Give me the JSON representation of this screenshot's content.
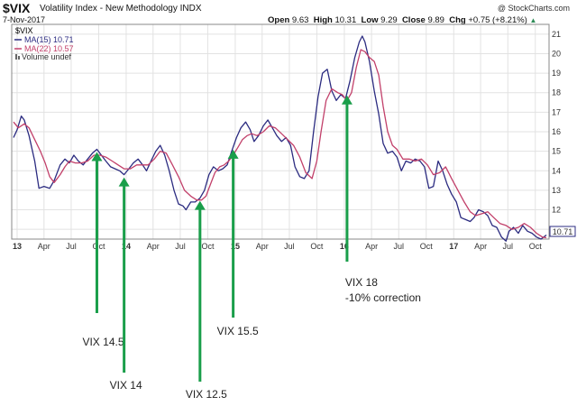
{
  "header": {
    "symbol": "$VIX",
    "subtitle": "Volatility Index - New Methodology",
    "exchange": "INDX",
    "date": "7-Nov-2017",
    "watermark": "@ StockCharts.com",
    "open_label": "Open",
    "open": "9.63",
    "high_label": "High",
    "high": "10.31",
    "low_label": "Low",
    "low": "9.29",
    "close_label": "Close",
    "close": "9.89",
    "chg_label": "Chg",
    "chg": "+0.75 (+8.21%)",
    "chg_arrow": "▲"
  },
  "legend": {
    "symbol": "$VIX",
    "ma15": "MA(15) 10.71",
    "ma22": "MA(22) 10.57",
    "volume": "Volume undef"
  },
  "colors": {
    "ma15": "#2b2b80",
    "ma22": "#c2406a",
    "annotation": "#1a9e4a",
    "grid": "#e2e2e2"
  },
  "chart_data": {
    "type": "line",
    "x_tick_labels": [
      "13",
      "Apr",
      "Jul",
      "Oct",
      "14",
      "Apr",
      "Jul",
      "Oct",
      "15",
      "Apr",
      "Jul",
      "Oct",
      "16",
      "Apr",
      "Jul",
      "Oct",
      "17",
      "Apr",
      "Jul",
      "Oct"
    ],
    "ylim": [
      10.5,
      21.5
    ],
    "y_ticks": [
      11,
      12,
      13,
      14,
      15,
      16,
      17,
      18,
      19,
      20,
      21
    ],
    "last_value_label": "10.71",
    "series": [
      {
        "name": "MA(15) 10.71",
        "points": [
          [
            "2012-12-20",
            15.7
          ],
          [
            "2013-01-01",
            16.1
          ],
          [
            "2013-01-15",
            16.8
          ],
          [
            "2013-01-25",
            16.6
          ],
          [
            "2013-02-10",
            15.8
          ],
          [
            "2013-03-01",
            14.5
          ],
          [
            "2013-03-15",
            13.1
          ],
          [
            "2013-04-01",
            13.2
          ],
          [
            "2013-04-20",
            13.1
          ],
          [
            "2013-05-05",
            13.5
          ],
          [
            "2013-05-25",
            14.3
          ],
          [
            "2013-06-10",
            14.6
          ],
          [
            "2013-06-25",
            14.4
          ],
          [
            "2013-07-10",
            14.8
          ],
          [
            "2013-07-25",
            14.5
          ],
          [
            "2013-08-10",
            14.3
          ],
          [
            "2013-08-25",
            14.6
          ],
          [
            "2013-09-10",
            14.9
          ],
          [
            "2013-09-25",
            15.1
          ],
          [
            "2013-10-10",
            14.8
          ],
          [
            "2013-10-25",
            14.5
          ],
          [
            "2013-11-10",
            14.2
          ],
          [
            "2013-11-25",
            14.1
          ],
          [
            "2013-12-10",
            14.0
          ],
          [
            "2013-12-25",
            13.8
          ],
          [
            "2014-01-10",
            14.1
          ],
          [
            "2014-01-25",
            14.4
          ],
          [
            "2014-02-10",
            14.6
          ],
          [
            "2014-02-25",
            14.3
          ],
          [
            "2014-03-10",
            14.0
          ],
          [
            "2014-03-25",
            14.5
          ],
          [
            "2014-04-10",
            15.0
          ],
          [
            "2014-04-25",
            15.3
          ],
          [
            "2014-05-10",
            14.8
          ],
          [
            "2014-05-25",
            14.0
          ],
          [
            "2014-06-10",
            13.0
          ],
          [
            "2014-06-25",
            12.3
          ],
          [
            "2014-07-10",
            12.2
          ],
          [
            "2014-07-20",
            12.0
          ],
          [
            "2014-08-05",
            12.4
          ],
          [
            "2014-08-20",
            12.4
          ],
          [
            "2014-09-05",
            12.6
          ],
          [
            "2014-09-20",
            13.0
          ],
          [
            "2014-10-05",
            13.8
          ],
          [
            "2014-10-20",
            14.2
          ],
          [
            "2014-11-05",
            14.0
          ],
          [
            "2014-11-20",
            14.1
          ],
          [
            "2014-12-05",
            14.3
          ],
          [
            "2014-12-20",
            15.0
          ],
          [
            "2015-01-05",
            15.7
          ],
          [
            "2015-01-20",
            16.2
          ],
          [
            "2015-02-05",
            16.5
          ],
          [
            "2015-02-20",
            16.1
          ],
          [
            "2015-03-05",
            15.5
          ],
          [
            "2015-03-20",
            15.8
          ],
          [
            "2015-04-05",
            16.3
          ],
          [
            "2015-04-20",
            16.6
          ],
          [
            "2015-05-05",
            16.2
          ],
          [
            "2015-05-20",
            15.8
          ],
          [
            "2015-06-05",
            15.5
          ],
          [
            "2015-06-20",
            15.7
          ],
          [
            "2015-07-05",
            15.3
          ],
          [
            "2015-07-20",
            14.2
          ],
          [
            "2015-08-05",
            13.7
          ],
          [
            "2015-08-20",
            13.6
          ],
          [
            "2015-09-05",
            14.0
          ],
          [
            "2015-09-20",
            16.0
          ],
          [
            "2015-10-05",
            17.8
          ],
          [
            "2015-10-20",
            19.0
          ],
          [
            "2015-11-05",
            19.2
          ],
          [
            "2015-11-20",
            18.1
          ],
          [
            "2015-12-05",
            17.6
          ],
          [
            "2015-12-20",
            17.9
          ],
          [
            "2016-01-05",
            17.7
          ],
          [
            "2016-01-20",
            18.6
          ],
          [
            "2016-02-05",
            19.8
          ],
          [
            "2016-02-20",
            20.6
          ],
          [
            "2016-03-01",
            20.9
          ],
          [
            "2016-03-10",
            20.6
          ],
          [
            "2016-03-25",
            19.6
          ],
          [
            "2016-04-10",
            18.1
          ],
          [
            "2016-04-25",
            16.9
          ],
          [
            "2016-05-10",
            15.4
          ],
          [
            "2016-05-25",
            14.9
          ],
          [
            "2016-06-10",
            15.0
          ],
          [
            "2016-06-25",
            14.7
          ],
          [
            "2016-07-10",
            14.0
          ],
          [
            "2016-07-25",
            14.5
          ],
          [
            "2016-08-10",
            14.4
          ],
          [
            "2016-08-25",
            14.6
          ],
          [
            "2016-09-10",
            14.5
          ],
          [
            "2016-09-25",
            14.2
          ],
          [
            "2016-10-10",
            13.1
          ],
          [
            "2016-10-25",
            13.2
          ],
          [
            "2016-11-10",
            14.5
          ],
          [
            "2016-11-25",
            14.0
          ],
          [
            "2016-12-10",
            13.3
          ],
          [
            "2016-12-25",
            12.8
          ],
          [
            "2017-01-10",
            12.4
          ],
          [
            "2017-01-25",
            11.6
          ],
          [
            "2017-02-10",
            11.5
          ],
          [
            "2017-02-25",
            11.4
          ],
          [
            "2017-03-10",
            11.6
          ],
          [
            "2017-03-25",
            12.0
          ],
          [
            "2017-04-10",
            11.9
          ],
          [
            "2017-04-25",
            11.7
          ],
          [
            "2017-05-10",
            11.2
          ],
          [
            "2017-05-25",
            11.1
          ],
          [
            "2017-06-10",
            10.6
          ],
          [
            "2017-06-25",
            10.4
          ],
          [
            "2017-07-05",
            10.9
          ],
          [
            "2017-07-20",
            11.1
          ],
          [
            "2017-08-05",
            10.8
          ],
          [
            "2017-08-20",
            11.2
          ],
          [
            "2017-09-05",
            10.9
          ],
          [
            "2017-09-20",
            10.8
          ],
          [
            "2017-10-05",
            10.6
          ],
          [
            "2017-10-20",
            10.5
          ],
          [
            "2017-11-07",
            10.71
          ]
        ]
      },
      {
        "name": "MA(22) 10.57",
        "points": [
          [
            "2012-12-20",
            16.5
          ],
          [
            "2013-01-05",
            16.2
          ],
          [
            "2013-01-25",
            16.4
          ],
          [
            "2013-02-10",
            16.2
          ],
          [
            "2013-03-01",
            15.6
          ],
          [
            "2013-03-20",
            15.0
          ],
          [
            "2013-04-05",
            14.4
          ],
          [
            "2013-04-20",
            13.7
          ],
          [
            "2013-05-05",
            13.4
          ],
          [
            "2013-05-25",
            13.8
          ],
          [
            "2013-06-10",
            14.2
          ],
          [
            "2013-06-25",
            14.5
          ],
          [
            "2013-07-15",
            14.4
          ],
          [
            "2013-08-05",
            14.4
          ],
          [
            "2013-08-25",
            14.5
          ],
          [
            "2013-09-15",
            14.8
          ],
          [
            "2013-10-05",
            14.8
          ],
          [
            "2013-10-25",
            14.7
          ],
          [
            "2013-11-15",
            14.5
          ],
          [
            "2013-12-05",
            14.3
          ],
          [
            "2013-12-25",
            14.1
          ],
          [
            "2014-01-15",
            14.1
          ],
          [
            "2014-02-05",
            14.3
          ],
          [
            "2014-02-25",
            14.3
          ],
          [
            "2014-03-15",
            14.3
          ],
          [
            "2014-04-05",
            14.6
          ],
          [
            "2014-04-25",
            15.0
          ],
          [
            "2014-05-15",
            14.9
          ],
          [
            "2014-06-05",
            14.3
          ],
          [
            "2014-06-25",
            13.7
          ],
          [
            "2014-07-15",
            13.0
          ],
          [
            "2014-08-05",
            12.7
          ],
          [
            "2014-08-25",
            12.5
          ],
          [
            "2014-09-10",
            12.5
          ],
          [
            "2014-09-25",
            12.7
          ],
          [
            "2014-10-10",
            13.3
          ],
          [
            "2014-10-25",
            13.9
          ],
          [
            "2014-11-10",
            14.2
          ],
          [
            "2014-11-25",
            14.3
          ],
          [
            "2014-12-10",
            14.5
          ],
          [
            "2014-12-25",
            14.8
          ],
          [
            "2015-01-10",
            15.2
          ],
          [
            "2015-01-25",
            15.6
          ],
          [
            "2015-02-10",
            15.8
          ],
          [
            "2015-02-25",
            15.9
          ],
          [
            "2015-03-15",
            15.8
          ],
          [
            "2015-04-05",
            16.0
          ],
          [
            "2015-04-25",
            16.3
          ],
          [
            "2015-05-15",
            16.2
          ],
          [
            "2015-06-05",
            15.9
          ],
          [
            "2015-06-25",
            15.6
          ],
          [
            "2015-07-15",
            15.3
          ],
          [
            "2015-08-05",
            14.7
          ],
          [
            "2015-08-25",
            13.9
          ],
          [
            "2015-09-15",
            13.6
          ],
          [
            "2015-10-01",
            14.5
          ],
          [
            "2015-10-15",
            16.0
          ],
          [
            "2015-11-01",
            17.6
          ],
          [
            "2015-11-20",
            18.2
          ],
          [
            "2015-12-10",
            18.0
          ],
          [
            "2015-12-25",
            17.9
          ],
          [
            "2016-01-10",
            17.6
          ],
          [
            "2016-01-25",
            18.0
          ],
          [
            "2016-02-10",
            19.3
          ],
          [
            "2016-02-25",
            20.2
          ],
          [
            "2016-03-10",
            20.1
          ],
          [
            "2016-03-25",
            19.8
          ],
          [
            "2016-04-10",
            19.6
          ],
          [
            "2016-04-25",
            18.9
          ],
          [
            "2016-05-10",
            17.3
          ],
          [
            "2016-05-25",
            16.0
          ],
          [
            "2016-06-10",
            15.3
          ],
          [
            "2016-06-25",
            15.1
          ],
          [
            "2016-07-15",
            14.6
          ],
          [
            "2016-08-05",
            14.6
          ],
          [
            "2016-08-25",
            14.5
          ],
          [
            "2016-09-15",
            14.6
          ],
          [
            "2016-10-05",
            14.3
          ],
          [
            "2016-10-25",
            13.8
          ],
          [
            "2016-11-15",
            13.9
          ],
          [
            "2016-12-05",
            14.2
          ],
          [
            "2016-12-25",
            13.6
          ],
          [
            "2017-01-15",
            13.0
          ],
          [
            "2017-02-05",
            12.4
          ],
          [
            "2017-02-25",
            11.9
          ],
          [
            "2017-03-15",
            11.7
          ],
          [
            "2017-04-05",
            11.8
          ],
          [
            "2017-04-25",
            11.9
          ],
          [
            "2017-05-15",
            11.6
          ],
          [
            "2017-06-05",
            11.3
          ],
          [
            "2017-06-25",
            11.2
          ],
          [
            "2017-07-15",
            11.0
          ],
          [
            "2017-08-05",
            11.1
          ],
          [
            "2017-08-25",
            11.3
          ],
          [
            "2017-09-15",
            11.1
          ],
          [
            "2017-10-05",
            10.8
          ],
          [
            "2017-10-25",
            10.6
          ],
          [
            "2017-11-07",
            10.57
          ]
        ]
      }
    ],
    "annotations": [
      {
        "label": "VIX 14.5",
        "date": "2013-09-25"
      },
      {
        "label": "VIX 14",
        "date": "2013-12-25"
      },
      {
        "label": "VIX 12.5",
        "date": "2014-09-05"
      },
      {
        "label": "VIX 15.5",
        "date": "2014-12-25"
      },
      {
        "label": "VIX 18",
        "label2": "-10% correction",
        "date": "2016-01-10"
      }
    ]
  }
}
